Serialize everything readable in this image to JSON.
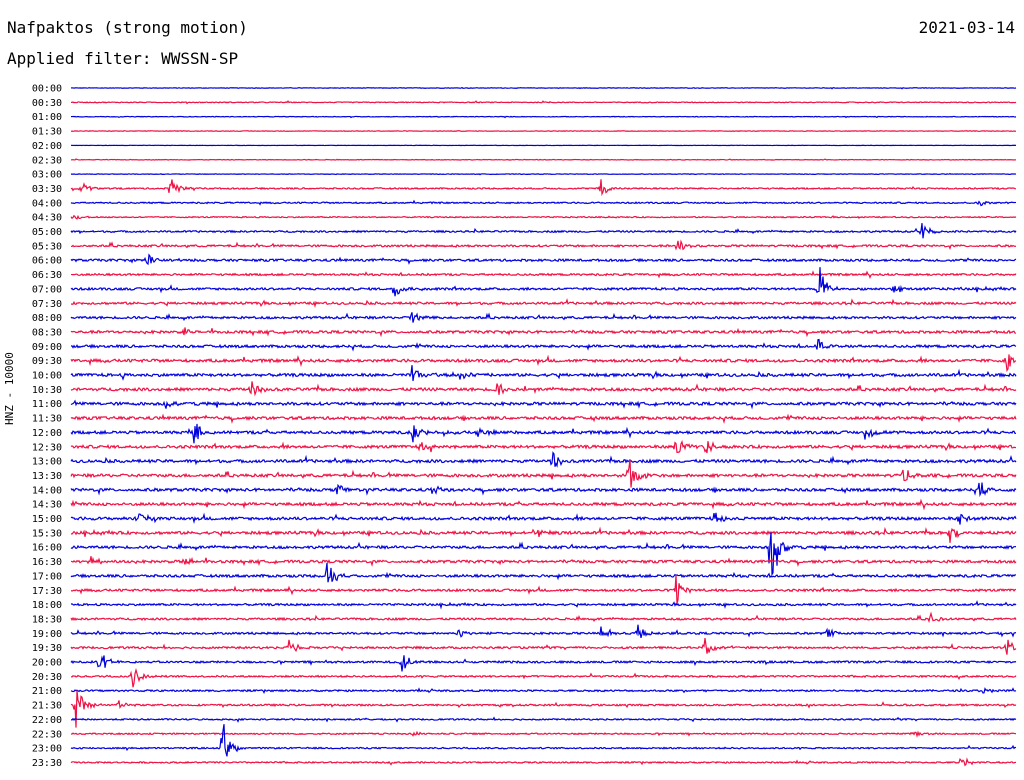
{
  "header": {
    "station": "Nafpaktos (strong motion)",
    "date": "2021-03-14",
    "filter": "Applied filter: WWSSN-SP"
  },
  "axis": {
    "channel_label": "HNZ - 10000"
  },
  "colors": {
    "blue": "#0000dd",
    "red": "#ee1144"
  },
  "chart_data": {
    "type": "line",
    "subtype": "helicorder",
    "title": "Nafpaktos (strong motion)",
    "subtitle": "Applied filter: WWSSN-SP",
    "date": "2021-03-14",
    "ylabel": "HNZ - 10000",
    "row_duration_min": 30,
    "ticks": [
      "00:00",
      "00:30",
      "01:00",
      "01:30",
      "02:00",
      "02:30",
      "03:00",
      "03:30",
      "04:00",
      "04:30",
      "05:00",
      "05:30",
      "06:00",
      "06:30",
      "07:00",
      "07:30",
      "08:00",
      "08:30",
      "09:00",
      "09:30",
      "10:00",
      "10:30",
      "11:00",
      "11:30",
      "12:00",
      "12:30",
      "13:00",
      "13:30",
      "14:00",
      "14:30",
      "15:00",
      "15:30",
      "16:00",
      "16:30",
      "17:00",
      "17:30",
      "18:00",
      "18:30",
      "19:00",
      "19:30",
      "20:00",
      "20:30",
      "21:00",
      "21:30",
      "22:00",
      "22:30",
      "23:00",
      "23:30"
    ],
    "row_colors": [
      "blue",
      "red"
    ],
    "noise_level": [
      0.2,
      0.3,
      0.2,
      0.2,
      0.1,
      0.2,
      0.2,
      0.5,
      0.5,
      0.4,
      0.6,
      0.7,
      0.8,
      0.7,
      0.8,
      0.8,
      0.8,
      0.9,
      0.9,
      1.0,
      1.0,
      1.0,
      1.0,
      1.0,
      1.0,
      1.0,
      1.0,
      1.0,
      1.0,
      1.0,
      1.0,
      1.0,
      0.9,
      0.9,
      0.9,
      0.8,
      0.7,
      0.7,
      0.7,
      0.7,
      0.7,
      0.6,
      0.6,
      0.6,
      0.5,
      0.5,
      0.5,
      0.5
    ],
    "events": [
      {
        "row": 7,
        "t": 0.01,
        "amp": 9
      },
      {
        "row": 7,
        "t": 0.105,
        "amp": 14
      },
      {
        "row": 7,
        "t": 0.56,
        "amp": 12
      },
      {
        "row": 8,
        "t": 0.96,
        "amp": 6
      },
      {
        "row": 9,
        "t": 0.003,
        "amp": 4
      },
      {
        "row": 10,
        "t": 0.9,
        "amp": 10
      },
      {
        "row": 11,
        "t": 0.64,
        "amp": 12
      },
      {
        "row": 12,
        "t": 0.08,
        "amp": 8
      },
      {
        "row": 14,
        "t": 0.34,
        "amp": 12
      },
      {
        "row": 14,
        "t": 0.79,
        "amp": 32
      },
      {
        "row": 14,
        "t": 0.87,
        "amp": 8
      },
      {
        "row": 16,
        "t": 0.36,
        "amp": 9
      },
      {
        "row": 17,
        "t": 0.12,
        "amp": 8
      },
      {
        "row": 18,
        "t": 0.79,
        "amp": 10
      },
      {
        "row": 19,
        "t": 0.99,
        "amp": 12
      },
      {
        "row": 20,
        "t": 0.36,
        "amp": 10
      },
      {
        "row": 20,
        "t": 0.41,
        "amp": 8
      },
      {
        "row": 21,
        "t": 0.19,
        "amp": 12
      },
      {
        "row": 21,
        "t": 0.45,
        "amp": 10
      },
      {
        "row": 22,
        "t": 0.1,
        "amp": 6
      },
      {
        "row": 24,
        "t": 0.13,
        "amp": 13
      },
      {
        "row": 24,
        "t": 0.36,
        "amp": 14
      },
      {
        "row": 24,
        "t": 0.43,
        "amp": 8
      },
      {
        "row": 24,
        "t": 0.84,
        "amp": 10
      },
      {
        "row": 25,
        "t": 0.37,
        "amp": 8
      },
      {
        "row": 25,
        "t": 0.64,
        "amp": 14
      },
      {
        "row": 25,
        "t": 0.67,
        "amp": 12
      },
      {
        "row": 26,
        "t": 0.51,
        "amp": 10
      },
      {
        "row": 27,
        "t": 0.59,
        "amp": 22
      },
      {
        "row": 27,
        "t": 0.88,
        "amp": 10
      },
      {
        "row": 28,
        "t": 0.28,
        "amp": 8
      },
      {
        "row": 28,
        "t": 0.38,
        "amp": 8
      },
      {
        "row": 28,
        "t": 0.96,
        "amp": 13
      },
      {
        "row": 30,
        "t": 0.07,
        "amp": 10
      },
      {
        "row": 30,
        "t": 0.68,
        "amp": 8
      },
      {
        "row": 30,
        "t": 0.94,
        "amp": 8
      },
      {
        "row": 31,
        "t": 0.49,
        "amp": 8
      },
      {
        "row": 31,
        "t": 0.93,
        "amp": 10
      },
      {
        "row": 32,
        "t": 0.74,
        "amp": 58
      },
      {
        "row": 33,
        "t": 0.02,
        "amp": 8
      },
      {
        "row": 33,
        "t": 0.12,
        "amp": 10
      },
      {
        "row": 34,
        "t": 0.27,
        "amp": 26
      },
      {
        "row": 35,
        "t": 0.64,
        "amp": 22
      },
      {
        "row": 37,
        "t": 0.91,
        "amp": 8
      },
      {
        "row": 38,
        "t": 0.41,
        "amp": 6
      },
      {
        "row": 38,
        "t": 0.56,
        "amp": 9
      },
      {
        "row": 38,
        "t": 0.6,
        "amp": 10
      },
      {
        "row": 38,
        "t": 0.8,
        "amp": 6
      },
      {
        "row": 39,
        "t": 0.23,
        "amp": 10
      },
      {
        "row": 39,
        "t": 0.67,
        "amp": 14
      },
      {
        "row": 39,
        "t": 0.99,
        "amp": 10
      },
      {
        "row": 40,
        "t": 0.03,
        "amp": 14
      },
      {
        "row": 40,
        "t": 0.35,
        "amp": 12
      },
      {
        "row": 41,
        "t": 0.065,
        "amp": 14
      },
      {
        "row": 42,
        "t": 0.96,
        "amp": 6
      },
      {
        "row": 43,
        "t": 0.005,
        "amp": 24
      },
      {
        "row": 43,
        "t": 0.05,
        "amp": 6
      },
      {
        "row": 45,
        "t": 0.36,
        "amp": 5
      },
      {
        "row": 45,
        "t": 0.89,
        "amp": 6
      },
      {
        "row": 46,
        "t": 0.16,
        "amp": 34
      },
      {
        "row": 47,
        "t": 0.94,
        "amp": 12
      }
    ]
  }
}
